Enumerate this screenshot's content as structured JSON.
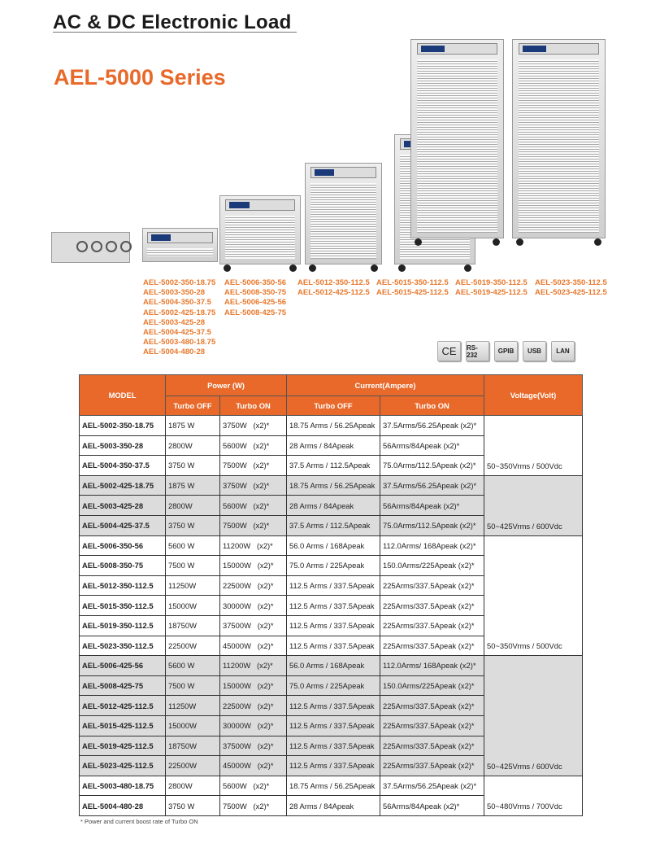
{
  "header": {
    "title": "AC & DC Electronic Load",
    "series": "AEL-5000 Series"
  },
  "colors": {
    "accent": "#e8692a",
    "gray_row": "#dcdcdc"
  },
  "model_groups": [
    [
      "AEL-5002-350-18.75",
      "AEL-5003-350-28",
      "AEL-5004-350-37.5",
      "AEL-5002-425-18.75",
      "AEL-5003-425-28",
      "AEL-5004-425-37.5",
      "AEL-5003-480-18.75",
      "AEL-5004-480-28"
    ],
    [
      "AEL-5006-350-56",
      "AEL-5008-350-75",
      "AEL-5006-425-56",
      "AEL-5008-425-75"
    ],
    [
      "AEL-5012-350-112.5",
      "AEL-5012-425-112.5"
    ],
    [
      "AEL-5015-350-112.5",
      "AEL-5015-425-112.5"
    ],
    [
      "AEL-5019-350-112.5",
      "AEL-5019-425-112.5"
    ],
    [
      "AEL-5023-350-112.5",
      "AEL-5023-425-112.5"
    ]
  ],
  "badges": [
    "CE",
    "RS-232",
    "GPIB",
    "USB",
    "LAN"
  ],
  "table": {
    "headers": {
      "model": "MODEL",
      "power": "Power (W)",
      "current": "Current(Ampere)",
      "voltage": "Voltage(Volt)",
      "turbo_off": "Turbo OFF",
      "turbo_on": "Turbo ON"
    },
    "rows": [
      [
        "AEL-5002-350-18.75",
        "1875 W",
        "3750W   (x2)*",
        "18.75 Arms / 56.25Apeak",
        "37.5Arms/56.25Apeak (x2)*"
      ],
      [
        "AEL-5003-350-28",
        "2800W",
        "5600W   (x2)*",
        "28 Arms / 84Apeak",
        "56Arms/84Apeak (x2)*"
      ],
      [
        "AEL-5004-350-37.5",
        "3750 W",
        "7500W   (x2)*",
        "37.5 Arms / 112.5Apeak",
        "75.0Arms/112.5Apeak (x2)*"
      ],
      [
        "AEL-5002-425-18.75",
        "1875 W",
        "3750W   (x2)*",
        "18.75 Arms / 56.25Apeak",
        "37.5Arms/56.25Apeak (x2)*"
      ],
      [
        "AEL-5003-425-28",
        "2800W",
        "5600W   (x2)*",
        "28 Arms / 84Apeak",
        "56Arms/84Apeak (x2)*"
      ],
      [
        "AEL-5004-425-37.5",
        "3750 W",
        "7500W   (x2)*",
        "37.5 Arms / 112.5Apeak",
        "75.0Arms/112.5Apeak (x2)*"
      ],
      [
        "AEL-5006-350-56",
        "5600 W",
        "11200W   (x2)*",
        "56.0 Arms / 168Apeak",
        "112.0Arms/ 168Apeak (x2)*"
      ],
      [
        "AEL-5008-350-75",
        "7500 W",
        "15000W   (x2)*",
        "75.0 Arms / 225Apeak",
        "150.0Arms/225Apeak (x2)*"
      ],
      [
        "AEL-5012-350-112.5",
        "11250W",
        "22500W   (x2)*",
        "112.5 Arms / 337.5Apeak",
        "225Arms/337.5Apeak (x2)*"
      ],
      [
        "AEL-5015-350-112.5",
        "15000W",
        "30000W   (x2)*",
        "112.5 Arms / 337.5Apeak",
        "225Arms/337.5Apeak (x2)*"
      ],
      [
        "AEL-5019-350-112.5",
        "18750W",
        "37500W   (x2)*",
        "112.5 Arms / 337.5Apeak",
        "225Arms/337.5Apeak (x2)*"
      ],
      [
        "AEL-5023-350-112.5",
        "22500W",
        "45000W   (x2)*",
        "112.5 Arms / 337.5Apeak",
        "225Arms/337.5Apeak (x2)*"
      ],
      [
        "AEL-5006-425-56",
        "5600 W",
        "11200W   (x2)*",
        "56.0 Arms / 168Apeak",
        "112.0Arms/ 168Apeak (x2)*"
      ],
      [
        "AEL-5008-425-75",
        "7500 W",
        "15000W   (x2)*",
        "75.0 Arms / 225Apeak",
        "150.0Arms/225Apeak (x2)*"
      ],
      [
        "AEL-5012-425-112.5",
        "11250W",
        "22500W   (x2)*",
        "112.5 Arms / 337.5Apeak",
        "225Arms/337.5Apeak (x2)*"
      ],
      [
        "AEL-5015-425-112.5",
        "15000W",
        "30000W   (x2)*",
        "112.5 Arms / 337.5Apeak",
        "225Arms/337.5Apeak (x2)*"
      ],
      [
        "AEL-5019-425-112.5",
        "18750W",
        "37500W   (x2)*",
        "112.5 Arms / 337.5Apeak",
        "225Arms/337.5Apeak (x2)*"
      ],
      [
        "AEL-5023-425-112.5",
        "22500W",
        "45000W   (x2)*",
        "112.5 Arms / 337.5Apeak",
        "225Arms/337.5Apeak (x2)*"
      ],
      [
        "AEL-5003-480-18.75",
        "2800W",
        "5600W   (x2)*",
        "18.75 Arms / 56.25Apeak",
        "37.5Arms/56.25Apeak (x2)*"
      ],
      [
        "AEL-5004-480-28",
        "3750 W",
        "7500W   (x2)*",
        "28 Arms / 84Apeak",
        "56Arms/84Apeak (x2)*"
      ]
    ],
    "voltage_groups": [
      {
        "rows": 3,
        "value": "50~350Vrms / 500Vdc",
        "gray": false
      },
      {
        "rows": 3,
        "value": "50~425Vrms / 600Vdc",
        "gray": true
      },
      {
        "rows": 6,
        "value": "50~350Vrms / 500Vdc",
        "gray": false
      },
      {
        "rows": 6,
        "value": "50~425Vrms / 600Vdc",
        "gray": true
      },
      {
        "rows": 2,
        "value": "50~480Vrms / 700Vdc",
        "gray": false
      }
    ]
  },
  "footnote": "* Power and current boost rate of Turbo ON"
}
